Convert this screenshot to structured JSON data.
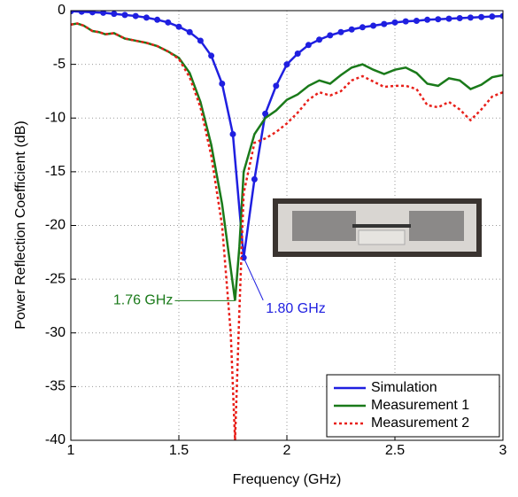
{
  "chart_data": {
    "type": "line",
    "xlabel": "Frequency (GHz)",
    "ylabel": "Power Reflection Coefficient (dB)",
    "xlim": [
      1,
      3
    ],
    "ylim": [
      -40,
      0
    ],
    "xticks": [
      1,
      1.5,
      2,
      2.5,
      3
    ],
    "yticks": [
      0,
      -5,
      -10,
      -15,
      -20,
      -25,
      -30,
      -35,
      -40
    ],
    "grid": true,
    "legend": "lower right",
    "x": [
      1,
      1.05,
      1.1,
      1.15,
      1.2,
      1.25,
      1.3,
      1.35,
      1.4,
      1.45,
      1.5,
      1.55,
      1.6,
      1.65,
      1.7,
      1.75,
      1.8,
      1.85,
      1.9,
      1.95,
      2,
      2.05,
      2.1,
      2.15,
      2.2,
      2.25,
      2.3,
      2.35,
      2.4,
      2.45,
      2.5,
      2.55,
      2.6,
      2.65,
      2.7,
      2.75,
      2.8,
      2.85,
      2.9,
      2.95,
      3
    ],
    "series": [
      {
        "name": "Simulation",
        "color": "#1f1fe0",
        "style": "solid",
        "markers": true,
        "values": [
          -0.05,
          -0.1,
          -0.15,
          -0.2,
          -0.3,
          -0.4,
          -0.5,
          -0.65,
          -0.85,
          -1.1,
          -1.5,
          -2.0,
          -2.8,
          -4.2,
          -6.8,
          -11.5,
          -23,
          -15.7,
          -9.6,
          -7.0,
          -5.0,
          -4.0,
          -3.2,
          -2.7,
          -2.3,
          -2.0,
          -1.75,
          -1.55,
          -1.4,
          -1.25,
          -1.1,
          -1.0,
          -0.95,
          -0.85,
          -0.8,
          -0.75,
          -0.7,
          -0.65,
          -0.6,
          -0.55,
          -0.5
        ]
      },
      {
        "name": "Measurement 1",
        "color": "#1a7a1a",
        "style": "solid",
        "markers": false,
        "x": [
          1,
          1.03,
          1.06,
          1.1,
          1.13,
          1.16,
          1.2,
          1.25,
          1.3,
          1.35,
          1.4,
          1.45,
          1.5,
          1.55,
          1.6,
          1.65,
          1.7,
          1.74,
          1.76,
          1.78,
          1.8,
          1.85,
          1.9,
          1.95,
          2,
          2.05,
          2.1,
          2.15,
          2.2,
          2.25,
          2.3,
          2.35,
          2.4,
          2.45,
          2.5,
          2.55,
          2.6,
          2.65,
          2.7,
          2.75,
          2.8,
          2.85,
          2.9,
          2.95,
          3
        ],
        "values": [
          -1.3,
          -1.2,
          -1.4,
          -1.9,
          -2.0,
          -2.2,
          -2.1,
          -2.6,
          -2.8,
          -3.0,
          -3.3,
          -3.8,
          -4.4,
          -5.8,
          -8.5,
          -12.5,
          -18,
          -24,
          -27,
          -22,
          -15,
          -11.5,
          -10,
          -9.3,
          -8.3,
          -7.8,
          -7.0,
          -6.5,
          -6.8,
          -6.0,
          -5.3,
          -5.0,
          -5.5,
          -5.9,
          -5.5,
          -5.3,
          -5.8,
          -6.8,
          -7.0,
          -6.3,
          -6.5,
          -7.3,
          -6.9,
          -6.2,
          -6.0
        ]
      },
      {
        "name": "Measurement 2",
        "color": "#e8201a",
        "style": "dotted",
        "markers": false,
        "x": [
          1,
          1.03,
          1.06,
          1.1,
          1.13,
          1.16,
          1.2,
          1.25,
          1.3,
          1.35,
          1.4,
          1.45,
          1.5,
          1.55,
          1.6,
          1.65,
          1.7,
          1.74,
          1.76,
          1.78,
          1.8,
          1.85,
          1.9,
          1.95,
          2,
          2.05,
          2.1,
          2.15,
          2.2,
          2.25,
          2.3,
          2.35,
          2.4,
          2.45,
          2.5,
          2.55,
          2.6,
          2.65,
          2.7,
          2.75,
          2.8,
          2.85,
          2.9,
          2.95,
          3
        ],
        "values": [
          -1.3,
          -1.2,
          -1.4,
          -1.9,
          -2.0,
          -2.2,
          -2.1,
          -2.6,
          -2.8,
          -3.0,
          -3.3,
          -3.8,
          -4.5,
          -6.2,
          -9,
          -13.5,
          -20,
          -30,
          -40,
          -28,
          -17,
          -12.3,
          -11.9,
          -11.3,
          -10.5,
          -9.5,
          -8.3,
          -7.6,
          -7.9,
          -7.5,
          -6.5,
          -6.1,
          -6.6,
          -7.1,
          -7.0,
          -7.0,
          -7.3,
          -8.8,
          -9.0,
          -8.5,
          -9.2,
          -10.2,
          -9.2,
          -8.0,
          -7.6
        ]
      }
    ],
    "annotations": [
      {
        "text": "1.76 GHz",
        "x": 1.76,
        "y": -27,
        "color": "#1a7a1a",
        "side": "left"
      },
      {
        "text": "1.80 GHz",
        "x": 1.8,
        "y": -23,
        "color": "#1f1fe0",
        "side": "right"
      }
    ]
  }
}
